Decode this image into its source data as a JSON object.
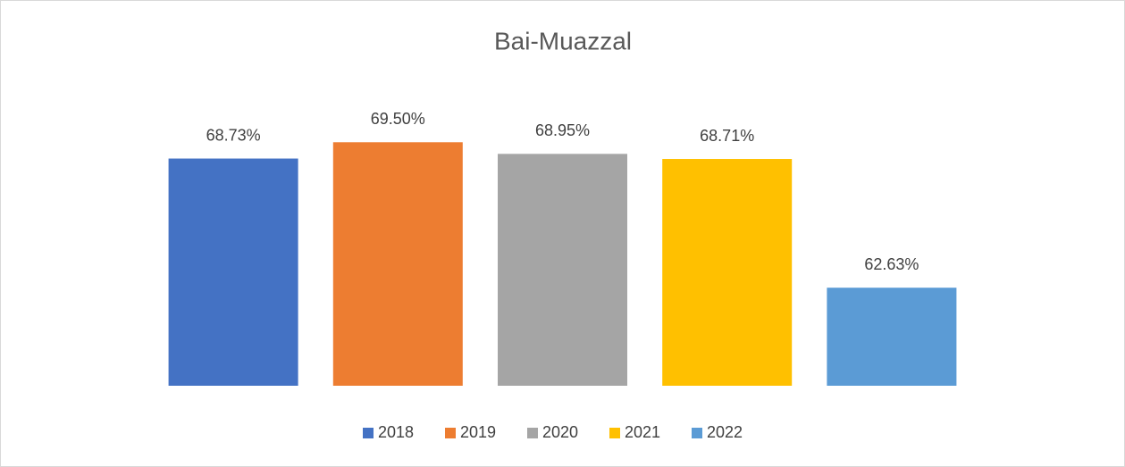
{
  "chart_data": {
    "type": "bar",
    "title": "Bai-Muazzal",
    "series": [
      {
        "name": "2018",
        "color": "#4472c4",
        "values": [
          68.73
        ],
        "value_labels": [
          "68.73%"
        ]
      },
      {
        "name": "2019",
        "color": "#ed7d31",
        "values": [
          69.5
        ],
        "value_labels": [
          "69.50%"
        ]
      },
      {
        "name": "2020",
        "color": "#a5a5a5",
        "values": [
          68.95
        ],
        "value_labels": [
          "68.95%"
        ]
      },
      {
        "name": "2021",
        "color": "#ffc000",
        "values": [
          68.71
        ],
        "value_labels": [
          "68.71%"
        ]
      },
      {
        "name": "2022",
        "color": "#5b9bd5",
        "values": [
          62.63
        ],
        "value_labels": [
          "62.63%"
        ]
      }
    ],
    "ylim": [
      58,
      72
    ],
    "legend": "bottom"
  }
}
